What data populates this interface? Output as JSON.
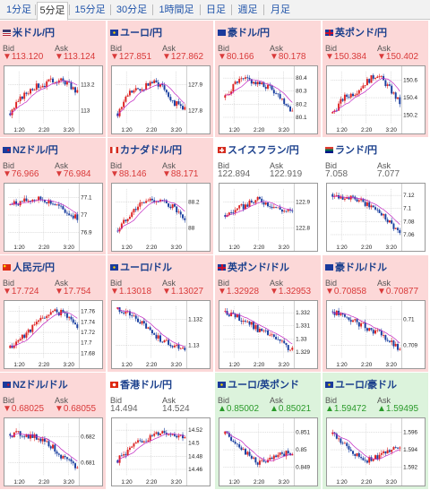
{
  "tabs": [
    "1分足",
    "5分足",
    "15分足",
    "30分足",
    "1時間足",
    "日足",
    "週足",
    "月足"
  ],
  "active_tab": 1,
  "panels": [
    {
      "title": "米ドル/円",
      "flag": "us",
      "bg": "down",
      "bid_label": "Bid",
      "ask_label": "Ask",
      "bid": "▼113.120",
      "ask": "▼113.124",
      "dir": "down",
      "xticks": [
        "1:20",
        "2:20",
        "3:20"
      ],
      "yticks": [
        "113.2",
        "113"
      ]
    },
    {
      "title": "ユーロ/円",
      "flag": "eu",
      "bg": "down",
      "bid_label": "Bid",
      "ask_label": "Ask",
      "bid": "▼127.851",
      "ask": "▼127.862",
      "dir": "down",
      "xticks": [
        "1:20",
        "2:20",
        "3:20"
      ],
      "yticks": [
        "127.9",
        "127.8"
      ]
    },
    {
      "title": "豪ドル/円",
      "flag": "au",
      "bg": "down",
      "bid_label": "Bid",
      "ask_label": "Ask",
      "bid": "▼80.166",
      "ask": "▼80.178",
      "dir": "down",
      "xticks": [
        "1:20",
        "2:20",
        "3:20"
      ],
      "yticks": [
        "80.4",
        "80.3",
        "80.2",
        "80.1"
      ]
    },
    {
      "title": "英ポンド/円",
      "flag": "gb",
      "bg": "down",
      "bid_label": "Bid",
      "ask_label": "Ask",
      "bid": "▼150.384",
      "ask": "▼150.402",
      "dir": "down",
      "xticks": [
        "1:20",
        "2:20",
        "3:20"
      ],
      "yticks": [
        "150.6",
        "150.4",
        "150.2"
      ]
    },
    {
      "title": "NZドル/円",
      "flag": "nz",
      "bg": "down",
      "bid_label": "Bid",
      "ask_label": "Ask",
      "bid": "▼76.966",
      "ask": "▼76.984",
      "dir": "down",
      "xticks": [
        "1:20",
        "2:20",
        "3:20"
      ],
      "yticks": [
        "77.1",
        "77",
        "76.9"
      ]
    },
    {
      "title": "カナダドル/円",
      "flag": "ca",
      "bg": "down",
      "bid_label": "Bid",
      "ask_label": "Ask",
      "bid": "▼88.146",
      "ask": "▼88.171",
      "dir": "down",
      "xticks": [
        "1:20",
        "2:20",
        "3:20"
      ],
      "yticks": [
        "88.2",
        "88"
      ]
    },
    {
      "title": "スイスフラン/円",
      "flag": "ch",
      "bg": "flat",
      "bid_label": "Bid",
      "ask_label": "Ask",
      "bid": "122.894",
      "ask": "122.919",
      "dir": "flat",
      "xticks": [
        "1:20",
        "2:20",
        "3:20"
      ],
      "yticks": [
        "122.9",
        "122.8"
      ]
    },
    {
      "title": "ランド/円",
      "flag": "za",
      "bg": "flat",
      "bid_label": "Bid",
      "ask_label": "Ask",
      "bid": "7.058",
      "ask": "7.077",
      "dir": "flat",
      "xticks": [
        "1:20",
        "2:20",
        "3:20"
      ],
      "yticks": [
        "7.12",
        "7.1",
        "7.08",
        "7.06"
      ]
    },
    {
      "title": "人民元/円",
      "flag": "cn",
      "bg": "down",
      "bid_label": "Bid",
      "ask_label": "Ask",
      "bid": "▼17.724",
      "ask": "▼17.754",
      "dir": "down",
      "xticks": [
        "1:20",
        "2:20",
        "3:20"
      ],
      "yticks": [
        "17.76",
        "17.74",
        "17.72",
        "17.7",
        "17.68"
      ]
    },
    {
      "title": "ユーロ/ドル",
      "flag": "eu",
      "bg": "down",
      "bid_label": "Bid",
      "ask_label": "Ask",
      "bid": "▼1.13018",
      "ask": "▼1.13027",
      "dir": "down",
      "xticks": [
        "1:20",
        "2:20",
        "3:20"
      ],
      "yticks": [
        "1.132",
        "1.13"
      ]
    },
    {
      "title": "英ポンド/ドル",
      "flag": "gb",
      "bg": "down",
      "bid_label": "Bid",
      "ask_label": "Ask",
      "bid": "▼1.32928",
      "ask": "▼1.32953",
      "dir": "down",
      "xticks": [
        "1:20",
        "2:20",
        "3:20"
      ],
      "yticks": [
        "1.332",
        "1.331",
        "1.33",
        "1.329"
      ]
    },
    {
      "title": "豪ドル/ドル",
      "flag": "au",
      "bg": "down",
      "bid_label": "Bid",
      "ask_label": "Ask",
      "bid": "▼0.70858",
      "ask": "▼0.70877",
      "dir": "down",
      "xticks": [
        "1:20",
        "2:20",
        "3:20"
      ],
      "yticks": [
        "0.71",
        "0.709"
      ]
    },
    {
      "title": "NZドル/ドル",
      "flag": "nz",
      "bg": "down",
      "bid_label": "Bid",
      "ask_label": "Ask",
      "bid": "▼0.68025",
      "ask": "▼0.68055",
      "dir": "down",
      "xticks": [
        "1:20",
        "2:20",
        "3:20"
      ],
      "yticks": [
        "0.682",
        "0.681"
      ]
    },
    {
      "title": "香港ドル/円",
      "flag": "hk",
      "bg": "flat",
      "bid_label": "Bid",
      "ask_label": "Ask",
      "bid": "14.494",
      "ask": "14.524",
      "dir": "flat",
      "xticks": [
        "1:20",
        "2:20",
        "3:20"
      ],
      "yticks": [
        "14.52",
        "14.5",
        "14.48",
        "14.46"
      ]
    },
    {
      "title": "ユーロ/英ポンド",
      "flag": "eu",
      "bg": "up",
      "bid_label": "Bid",
      "ask_label": "Ask",
      "bid": "▲0.85002",
      "ask": "▲0.85021",
      "dir": "up",
      "xticks": [
        "1:20",
        "2:20",
        "3:20"
      ],
      "yticks": [
        "0.851",
        "0.85",
        "0.849"
      ]
    },
    {
      "title": "ユーロ/豪ドル",
      "flag": "eu",
      "bg": "up",
      "bid_label": "Bid",
      "ask_label": "Ask",
      "bid": "▲1.59472",
      "ask": "▲1.59495",
      "dir": "up",
      "xticks": [
        "1:20",
        "2:20",
        "3:20"
      ],
      "yticks": [
        "1.596",
        "1.594",
        "1.592"
      ]
    }
  ]
}
